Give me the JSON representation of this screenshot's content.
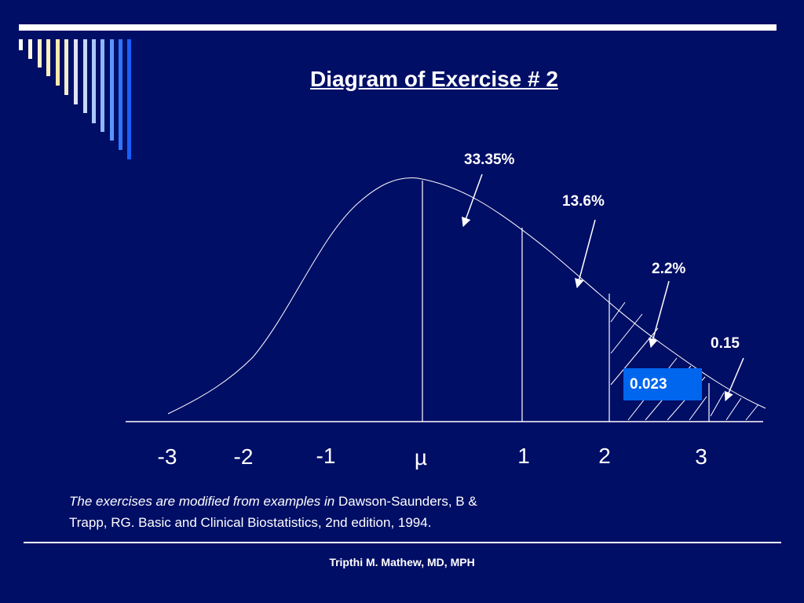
{
  "slide": {
    "title": "Diagram of Exercise # 2",
    "colors": {
      "background": "#000e66",
      "box": "#0066ee",
      "ink": "#ffffff"
    }
  },
  "diagram": {
    "type": "normal-curve",
    "percent_labels": {
      "band_mu_to_1": "33.35%",
      "band_1_to_2": "13.6%",
      "band_2_to_3": "2.2%",
      "beyond_3": "0.15"
    },
    "box_value": "0.023",
    "x_axis_labels": [
      "-3",
      "-2",
      "-1",
      "µ",
      "1",
      "2",
      "3"
    ]
  },
  "source": {
    "italic_part": "The exercises are modified from examples in ",
    "line1_rest": "Dawson-Saunders, B &",
    "line2": "Trapp, RG. Basic and Clinical Biostatistics, 2nd edition, 1994."
  },
  "footer": {
    "author": "Tripthi M. Mathew, MD, MPH"
  }
}
